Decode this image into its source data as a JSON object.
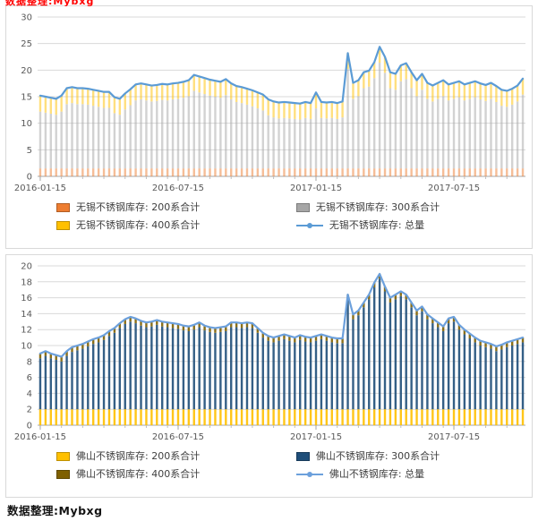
{
  "page": {
    "top_note": "数据整理:Mybxg",
    "source_note": "数据整理:Mybxg"
  },
  "chart_data": [
    {
      "type": "combo_stacked_bar_line",
      "title": "",
      "xlabel": "",
      "ylabel": "",
      "grid": true,
      "legend_position": "bottom",
      "bar_opacity": 0.5,
      "y_axis": {
        "min": 0,
        "max": 30,
        "step": 5
      },
      "x_ticks": [
        {
          "index": 0,
          "label": "2016-01-15"
        },
        {
          "index": 26,
          "label": "2016-07-15"
        },
        {
          "index": 52,
          "label": "2017-01-15"
        },
        {
          "index": 78,
          "label": "2017-07-15"
        }
      ],
      "series": {
        "s200": {
          "name": "无锡不锈钢库存: 200系合计",
          "color": "#ED7D31",
          "constant": 1.5
        },
        "s300": {
          "name": "无锡不锈钢库存: 300系合计",
          "color": "#A6A6A6",
          "values": [
            10.7,
            10.5,
            10.3,
            10.1,
            10.7,
            12.1,
            12.3,
            12.1,
            12.1,
            12.0,
            11.8,
            11.6,
            11.4,
            11.4,
            10.4,
            10.1,
            11.1,
            11.9,
            12.8,
            13.0,
            12.8,
            12.6,
            12.7,
            12.9,
            12.8,
            13.0,
            13.1,
            13.3,
            13.6,
            14.6,
            14.3,
            14.0,
            13.7,
            13.5,
            13.3,
            13.8,
            13.0,
            12.5,
            12.3,
            12.0,
            11.7,
            11.3,
            10.9,
            10.0,
            9.6,
            9.4,
            9.5,
            9.4,
            9.3,
            9.2,
            9.5,
            9.3,
            11.3,
            9.5,
            9.4,
            9.5,
            9.3,
            9.6,
            18.7,
            13.1,
            13.6,
            15.1,
            15.4,
            17.0,
            19.9,
            18.0,
            15.1,
            14.8,
            16.4,
            16.8,
            15.1,
            13.6,
            14.8,
            13.1,
            12.6,
            13.1,
            13.6,
            12.8,
            13.1,
            13.4,
            12.8,
            13.1,
            13.4,
            13.0,
            12.7,
            13.1,
            12.5,
            11.8,
            11.6,
            12.0,
            12.6,
            13.9
          ]
        },
        "s400": {
          "name": "无锡不锈钢库存: 400系合计",
          "color": "#FFC000",
          "constant": 3.0
        },
        "total": {
          "name": "无锡不锈钢库存: 总量",
          "color": "#5B9BD5",
          "values": [
            15.2,
            15.0,
            14.8,
            14.6,
            15.2,
            16.6,
            16.8,
            16.6,
            16.6,
            16.5,
            16.3,
            16.1,
            15.9,
            15.9,
            14.9,
            14.6,
            15.6,
            16.4,
            17.3,
            17.5,
            17.3,
            17.1,
            17.2,
            17.4,
            17.3,
            17.5,
            17.6,
            17.8,
            18.1,
            19.1,
            18.8,
            18.5,
            18.2,
            18.0,
            17.8,
            18.3,
            17.5,
            17.0,
            16.8,
            16.5,
            16.2,
            15.8,
            15.4,
            14.5,
            14.1,
            13.9,
            14.0,
            13.9,
            13.8,
            13.7,
            14.0,
            13.8,
            15.8,
            14.0,
            13.9,
            14.0,
            13.8,
            14.1,
            23.2,
            17.6,
            18.1,
            19.6,
            19.9,
            21.5,
            24.4,
            22.5,
            19.6,
            19.3,
            20.9,
            21.3,
            19.6,
            18.1,
            19.3,
            17.6,
            17.1,
            17.6,
            18.1,
            17.3,
            17.6,
            17.9,
            17.3,
            17.6,
            17.9,
            17.5,
            17.2,
            17.6,
            17.0,
            16.3,
            16.1,
            16.5,
            17.1,
            18.4
          ]
        }
      }
    },
    {
      "type": "combo_stacked_bar_line",
      "title": "",
      "xlabel": "",
      "ylabel": "",
      "grid": true,
      "legend_position": "bottom",
      "bar_opacity": 0.9,
      "y_axis": {
        "min": 0,
        "max": 20,
        "step": 2
      },
      "x_ticks": [
        {
          "index": 0,
          "label": "2016-01-15"
        },
        {
          "index": 26,
          "label": "2016-07-15"
        },
        {
          "index": 52,
          "label": "2017-01-15"
        },
        {
          "index": 78,
          "label": "2017-07-15"
        }
      ],
      "series": {
        "s200": {
          "name": "佛山不锈钢库存: 200系合计",
          "color": "#FFC000",
          "constant": 2.0
        },
        "s300": {
          "name": "佛山不锈钢库存: 300系合计",
          "color": "#1F4E79",
          "values": [
            6.4,
            6.7,
            6.4,
            6.2,
            6.0,
            6.7,
            7.2,
            7.4,
            7.6,
            7.9,
            8.2,
            8.4,
            8.7,
            9.2,
            9.6,
            10.2,
            10.7,
            11.0,
            10.8,
            10.5,
            10.3,
            10.4,
            10.6,
            10.4,
            10.3,
            10.2,
            10.1,
            9.9,
            9.8,
            10.0,
            10.3,
            9.9,
            9.7,
            9.6,
            9.7,
            9.8,
            10.3,
            10.3,
            10.2,
            10.3,
            10.2,
            9.6,
            9.0,
            8.6,
            8.4,
            8.6,
            8.8,
            8.6,
            8.4,
            8.7,
            8.5,
            8.4,
            8.6,
            8.8,
            8.6,
            8.4,
            8.3,
            8.3,
            13.8,
            11.3,
            11.8,
            12.8,
            13.8,
            15.3,
            16.4,
            14.8,
            13.4,
            13.8,
            14.2,
            13.8,
            12.8,
            11.8,
            12.3,
            11.3,
            10.8,
            10.3,
            9.8,
            10.8,
            11.0,
            10.0,
            9.4,
            8.9,
            8.4,
            8.0,
            7.8,
            7.6,
            7.3,
            7.5,
            7.8,
            8.0,
            8.2,
            8.4
          ]
        },
        "s400": {
          "name": "佛山不锈钢库存: 400系合计",
          "color": "#7F6000",
          "constant": 0.6
        },
        "total": {
          "name": "佛山不锈钢库存: 总量",
          "color": "#6CA0DC",
          "values": [
            9.0,
            9.3,
            9.0,
            8.8,
            8.6,
            9.3,
            9.8,
            10.0,
            10.2,
            10.5,
            10.8,
            11.0,
            11.3,
            11.8,
            12.2,
            12.8,
            13.3,
            13.6,
            13.4,
            13.1,
            12.9,
            13.0,
            13.2,
            13.0,
            12.9,
            12.8,
            12.7,
            12.5,
            12.4,
            12.6,
            12.9,
            12.5,
            12.3,
            12.2,
            12.3,
            12.4,
            12.9,
            12.9,
            12.8,
            12.9,
            12.8,
            12.2,
            11.6,
            11.2,
            11.0,
            11.2,
            11.4,
            11.2,
            11.0,
            11.3,
            11.1,
            11.0,
            11.2,
            11.4,
            11.2,
            11.0,
            10.9,
            10.9,
            16.4,
            13.9,
            14.4,
            15.4,
            16.4,
            17.9,
            19.0,
            17.4,
            16.0,
            16.4,
            16.8,
            16.4,
            15.4,
            14.4,
            14.9,
            13.9,
            13.4,
            12.9,
            12.4,
            13.4,
            13.6,
            12.6,
            12.0,
            11.5,
            11.0,
            10.6,
            10.4,
            10.2,
            9.9,
            10.1,
            10.4,
            10.6,
            10.8,
            11.0
          ]
        }
      }
    }
  ]
}
